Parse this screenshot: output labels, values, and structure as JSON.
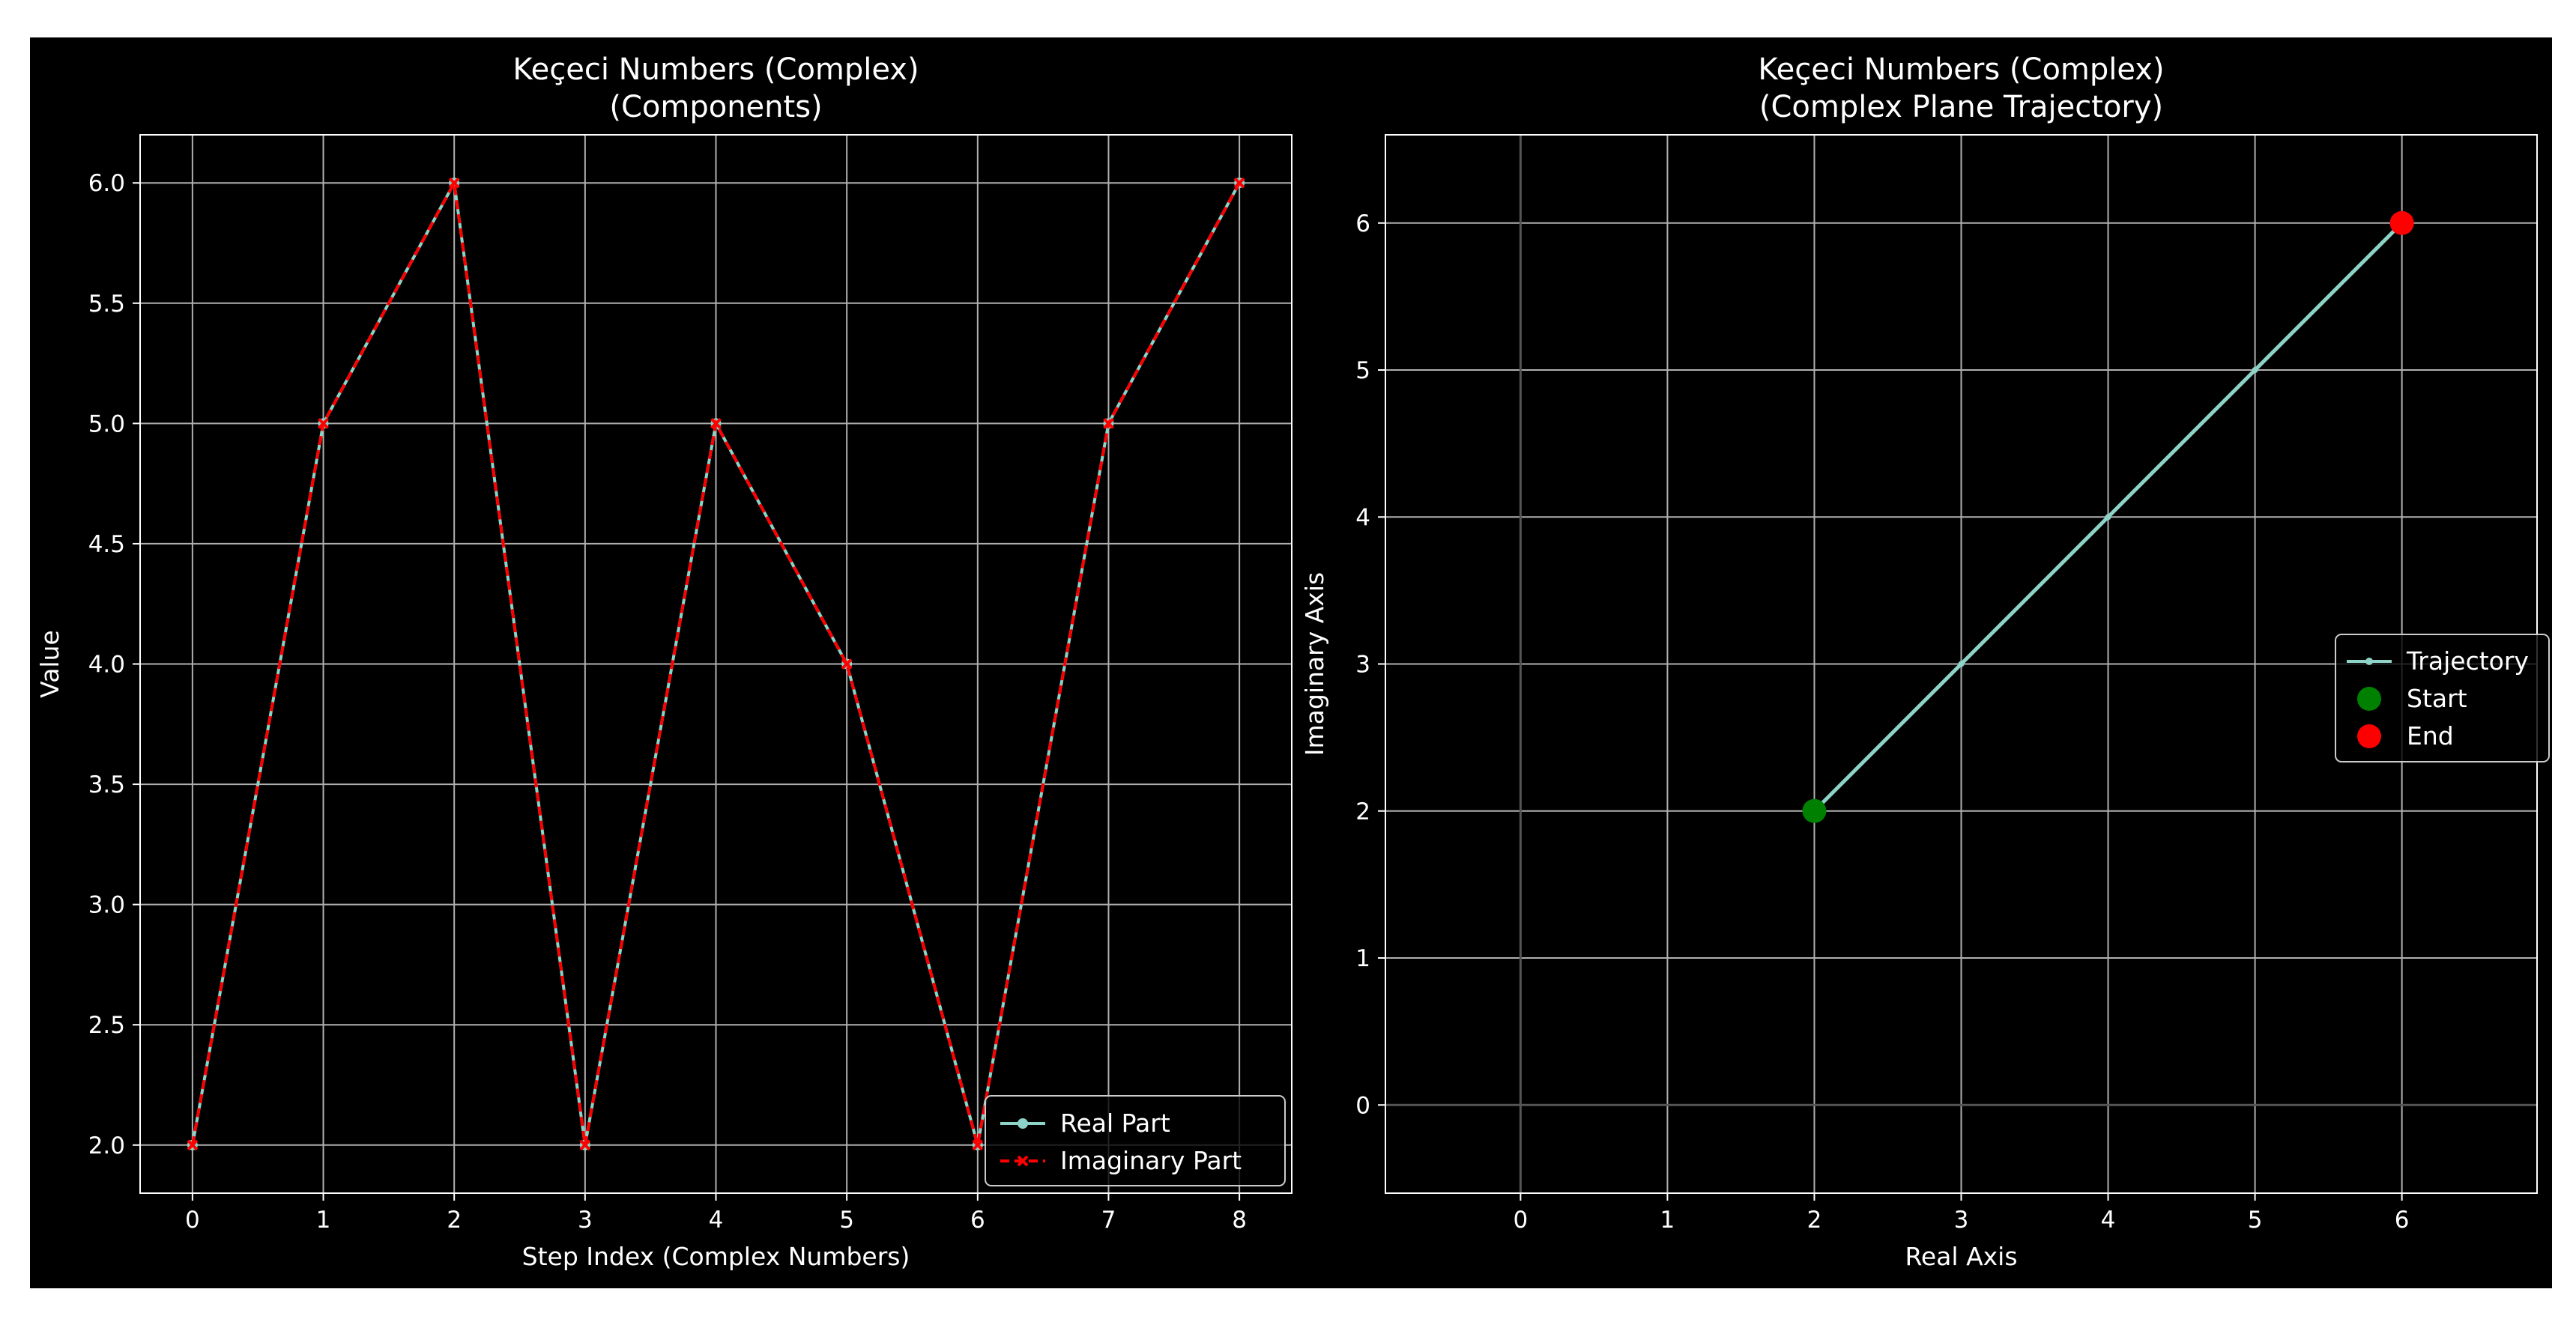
{
  "chart_data": [
    {
      "type": "line",
      "title_line1": "Keçeci Numbers (Complex)",
      "title_line2": "(Components)",
      "xlabel": "Step Index (Complex Numbers)",
      "ylabel": "Value",
      "xlim": [
        -0.4,
        8.4
      ],
      "ylim": [
        1.8,
        6.2
      ],
      "xticks": [
        0,
        1,
        2,
        3,
        4,
        5,
        6,
        7,
        8
      ],
      "yticks": [
        2.0,
        2.5,
        3.0,
        3.5,
        4.0,
        4.5,
        5.0,
        5.5,
        6.0
      ],
      "ytick_labels": [
        "2.0",
        "2.5",
        "3.0",
        "3.5",
        "4.0",
        "4.5",
        "5.0",
        "5.5",
        "6.0"
      ],
      "grid": true,
      "legend_position": "lower right",
      "x": [
        0,
        1,
        2,
        3,
        4,
        5,
        6,
        7,
        8
      ],
      "series": [
        {
          "name": "Real Part",
          "values": [
            2,
            5,
            6,
            2,
            5,
            4,
            2,
            5,
            6
          ],
          "color": "#8dd3c7",
          "style": "solid",
          "marker": "circle"
        },
        {
          "name": "Imaginary Part",
          "values": [
            2,
            5,
            6,
            2,
            5,
            4,
            2,
            5,
            6
          ],
          "color": "#ff0000",
          "style": "dashed",
          "marker": "x"
        }
      ]
    },
    {
      "type": "line",
      "title_line1": "Keçeci Numbers (Complex)",
      "title_line2": "(Complex Plane Trajectory)",
      "xlabel": "Real Axis",
      "ylabel": "Imaginary Axis",
      "xlim": [
        -0.92,
        6.92
      ],
      "ylim": [
        -0.6,
        6.6
      ],
      "xticks": [
        0,
        1,
        2,
        3,
        4,
        5,
        6
      ],
      "yticks": [
        0,
        1,
        2,
        3,
        4,
        5,
        6
      ],
      "grid": true,
      "legend_position": "center right",
      "series": [
        {
          "name": "Trajectory",
          "x": [
            2,
            3,
            4,
            5,
            6
          ],
          "y": [
            2,
            3,
            4,
            5,
            6
          ],
          "color": "#8dd3c7",
          "marker": "circle"
        }
      ],
      "points": [
        {
          "name": "Start",
          "x": 2,
          "y": 2,
          "color": "#008000"
        },
        {
          "name": "End",
          "x": 6,
          "y": 6,
          "color": "#ff0000"
        }
      ]
    }
  ]
}
